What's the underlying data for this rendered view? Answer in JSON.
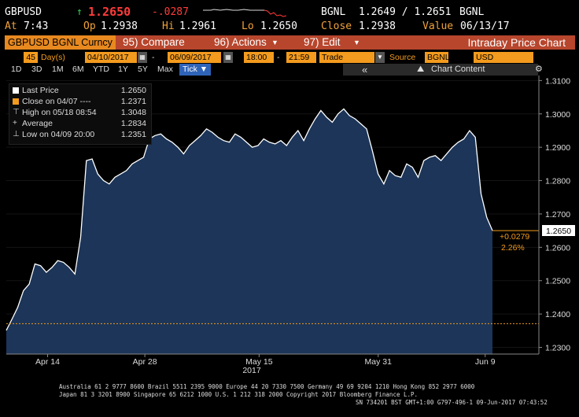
{
  "quote": {
    "ticker": "GBPUSD",
    "arrow": "↑",
    "last": "1.2650",
    "change": "-.0287",
    "source1": "BGNL",
    "bid_ask": "1.2649 / 1.2651",
    "source2": "BGNL",
    "at_label": "At",
    "time": "7:43",
    "open_label": "Op",
    "open": "1.2938",
    "high_label": "Hi",
    "high": "1.2961",
    "low_label": "Lo",
    "low": "1.2650",
    "close_label": "Close",
    "close": "1.2938",
    "value_label": "Value",
    "value_date": "06/13/17"
  },
  "function_bar": {
    "security": "GBPUSD BGNL Curncy",
    "compare": "95) Compare",
    "actions": "96) Actions",
    "edit": "97) Edit",
    "title": "Intraday Price Chart"
  },
  "params": {
    "days_value": "45",
    "days_label": "Day(s)",
    "start_date": "04/10/2017",
    "end_date": "06/09/2017",
    "start_time": "18:00",
    "end_time": "21:59",
    "event": "Trade",
    "source_label": "Source",
    "source_value": "BGNL",
    "currency": "USD"
  },
  "ranges": [
    "1D",
    "3D",
    "1M",
    "6M",
    "YTD",
    "1Y",
    "5Y",
    "Max"
  ],
  "tick_button": "Tick ▼",
  "chart_toolbar": {
    "collapse": "«",
    "content_label": "Chart Content",
    "settings_icon": "gear-icon"
  },
  "legend": [
    {
      "label": "Last Price",
      "value": "1.2650"
    },
    {
      "label": "Close on 04/07 ----",
      "value": "1.2371"
    },
    {
      "label": "High on 05/18 08:54",
      "value": "1.3048"
    },
    {
      "label": "Average",
      "value": "1.2834"
    },
    {
      "label": "Low on 04/09 20:00",
      "value": "1.2351"
    }
  ],
  "markers": {
    "last_price": "1.2650",
    "change_abs": "+0.0279",
    "change_pct": "2.26%"
  },
  "colors": {
    "fill": "#1c3558",
    "line": "#ffffff",
    "accent": "#f39b1e",
    "function_bar": "#b7462d"
  },
  "chart_data": {
    "type": "area",
    "y_ticks": [
      "1.3100",
      "1.3000",
      "1.2900",
      "1.2800",
      "1.2700",
      "1.2600",
      "1.2500",
      "1.2400",
      "1.2300"
    ],
    "ylim": [
      1.228,
      1.3115
    ],
    "x_ticks": [
      "Apr 14",
      "Apr 28",
      "May 15",
      "May 31",
      "Jun 9"
    ],
    "x_year": "2017",
    "reference_close": 1.2371,
    "x": [
      0,
      1,
      2,
      3,
      4,
      5,
      6,
      7,
      8,
      9,
      10,
      11,
      12,
      13,
      14,
      15,
      16,
      17,
      18,
      19,
      20,
      21,
      22,
      23,
      24,
      25,
      26,
      27,
      28,
      29,
      30,
      31,
      32,
      33,
      34,
      35,
      36,
      37,
      38,
      39,
      40,
      41,
      42,
      43,
      44,
      45,
      46,
      47,
      48,
      49,
      50,
      51,
      52,
      53,
      54,
      55,
      56,
      57,
      58,
      59,
      60,
      61,
      62,
      63,
      64,
      65,
      66,
      67,
      68,
      69,
      70,
      71,
      72,
      73,
      74,
      75,
      76,
      77,
      78,
      79,
      80,
      81,
      82,
      83,
      84,
      85
    ],
    "values": [
      1.2351,
      1.2385,
      1.242,
      1.247,
      1.249,
      1.255,
      1.2545,
      1.2525,
      1.254,
      1.256,
      1.2555,
      1.254,
      1.252,
      1.263,
      1.286,
      1.2865,
      1.282,
      1.28,
      1.279,
      1.281,
      1.282,
      1.283,
      1.285,
      1.286,
      1.287,
      1.2925,
      1.2935,
      1.294,
      1.2925,
      1.2915,
      1.29,
      1.288,
      1.2905,
      1.292,
      1.2935,
      1.2955,
      1.2945,
      1.293,
      1.292,
      1.2915,
      1.294,
      1.293,
      1.2915,
      1.29,
      1.2905,
      1.2925,
      1.2915,
      1.291,
      1.292,
      1.2905,
      1.293,
      1.295,
      1.292,
      1.2955,
      1.2985,
      1.301,
      1.299,
      1.2975,
      1.3,
      1.3015,
      1.2995,
      1.2985,
      1.297,
      1.2955,
      1.289,
      1.282,
      1.279,
      1.283,
      1.2815,
      1.281,
      1.285,
      1.284,
      1.281,
      1.286,
      1.287,
      1.2875,
      1.286,
      1.288,
      1.29,
      1.2915,
      1.2925,
      1.295,
      1.293,
      1.276,
      1.269,
      1.265
    ]
  },
  "footer": {
    "line1": "Australia 61 2 9777 8600 Brazil 5511 2395 9000 Europe 44 20 7330 7500 Germany 49 69 9204 1210 Hong Kong 852 2977 6000",
    "line2": "Japan 81 3 3201 8900        Singapore 65 6212 1000         U.S. 1 212 318 2000          Copyright 2017 Bloomberg Finance L.P.",
    "line3": "SN 734201 BST  GMT+1:00 G797-496-1 09-Jun-2017 07:43:52"
  }
}
